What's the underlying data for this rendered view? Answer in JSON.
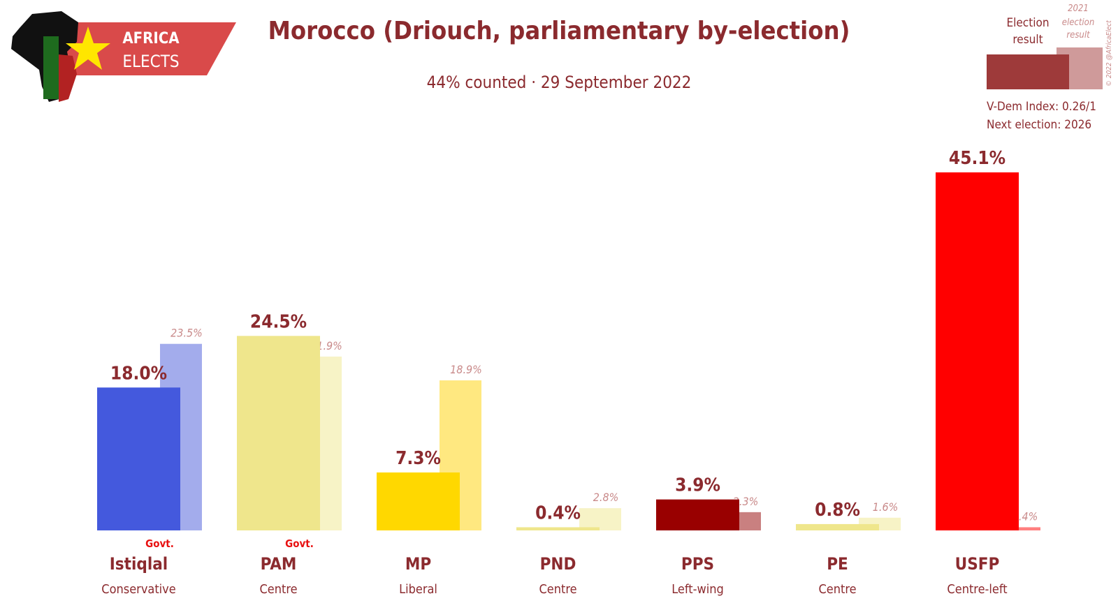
{
  "brand": {
    "line1": "AFRICA",
    "line2": "ELECTS"
  },
  "header": {
    "title": "Morocco (Driouch, parliamentary by-election)",
    "subtitle": "44% counted · 29 September 2022"
  },
  "legend": {
    "current_line1": "Election",
    "current_line2": "result",
    "previous_line1": "2021",
    "previous_line2": "election",
    "previous_line3": "result",
    "vdem": "V-Dem Index: 0.26/1",
    "next_election": "Next election: 2026",
    "copyright": "© 2022 @AfricaElect"
  },
  "chart_data": {
    "type": "bar",
    "title": "Morocco (Driouch, parliamentary by-election)",
    "subtitle": "44% counted · 29 September 2022",
    "categories": [
      "Istiqlal",
      "PAM",
      "MP",
      "PND",
      "PPS",
      "PE",
      "USFP"
    ],
    "category_descriptors": [
      "Conservative",
      "Centre",
      "Liberal",
      "Centre",
      "Left-wing",
      "Centre",
      "Centre-left"
    ],
    "government_flags": [
      "Govt.",
      "Govt.",
      "",
      "",
      "",
      "",
      ""
    ],
    "series": [
      {
        "name": "Election result",
        "values": [
          18.0,
          24.5,
          7.3,
          0.4,
          3.9,
          0.8,
          45.1
        ],
        "labels": [
          "18.0%",
          "24.5%",
          "7.3%",
          "0.4%",
          "3.9%",
          "0.8%",
          "45.1%"
        ]
      },
      {
        "name": "2021 election result",
        "values": [
          23.5,
          21.9,
          18.9,
          2.8,
          2.3,
          1.6,
          0.4
        ],
        "labels": [
          "23.5%",
          "21.9%",
          "18.9%",
          "2.8%",
          "2.3%",
          "1.6%",
          "0.4%"
        ]
      }
    ],
    "colors": [
      "#4459dd",
      "#efe68c",
      "#ffd800",
      "#efe68c",
      "#990000",
      "#efe68c",
      "#ff0000"
    ],
    "previous_colors": [
      "#a3acec",
      "#f7f3c6",
      "#ffe880",
      "#f7f3c6",
      "#c98080",
      "#f7f3c6",
      "#ff7f7f"
    ],
    "ylim": [
      0,
      45.1
    ],
    "grid": false
  }
}
